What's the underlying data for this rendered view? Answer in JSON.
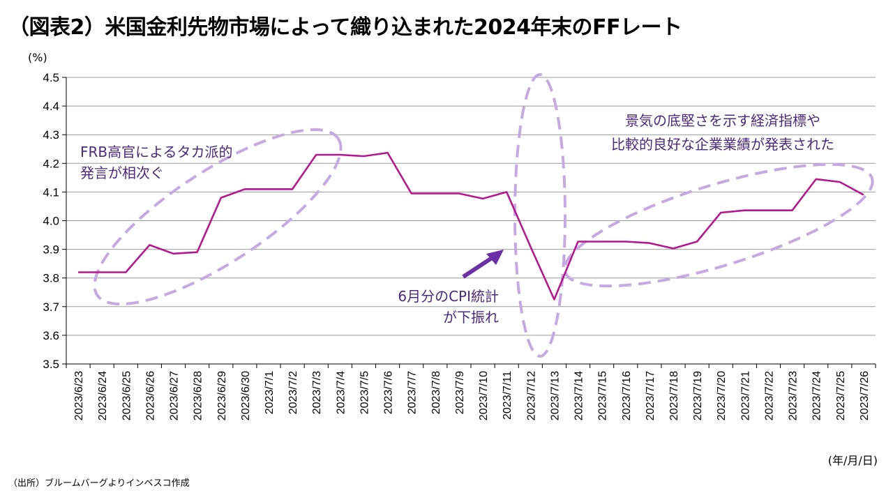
{
  "title": "（図表2）米国金利先物市場によって織り込まれた2024年末のFFレート",
  "source": "（出所）ブルームバーグよりインベスコ作成",
  "chart_data": {
    "type": "line",
    "y_unit": "(%)",
    "x_unit": "(年/月/日)",
    "ylim": [
      3.5,
      4.5
    ],
    "yticks": [
      "3.5",
      "3.6",
      "3.7",
      "3.8",
      "3.9",
      "4.0",
      "4.1",
      "4.2",
      "4.3",
      "4.4",
      "4.5"
    ],
    "grid": true,
    "line_color": "#b5178f",
    "annotation_color": "#c6a9e2",
    "categories": [
      "2023/6/23",
      "2023/6/24",
      "2023/6/25",
      "2023/6/26",
      "2023/6/27",
      "2023/6/28",
      "2023/6/29",
      "2023/6/30",
      "2023/7/1",
      "2023/7/2",
      "2023/7/3",
      "2023/7/4",
      "2023/7/5",
      "2023/7/6",
      "2023/7/7",
      "2023/7/8",
      "2023/7/9",
      "2023/7/10",
      "2023/7/11",
      "2023/7/12",
      "2023/7/13",
      "2023/7/14",
      "2023/7/15",
      "2023/7/16",
      "2023/7/17",
      "2023/7/18",
      "2023/7/19",
      "2023/7/20",
      "2023/7/21",
      "2023/7/22",
      "2023/7/23",
      "2023/7/24",
      "2023/7/25",
      "2023/7/26"
    ],
    "series": [
      {
        "values": [
          3.82,
          3.82,
          3.82,
          3.915,
          3.885,
          3.89,
          4.08,
          4.11,
          4.11,
          4.11,
          4.23,
          4.23,
          4.225,
          4.237,
          4.095,
          4.095,
          4.095,
          4.077,
          4.1,
          3.91,
          3.725,
          3.927,
          3.927,
          3.927,
          3.922,
          3.903,
          3.927,
          4.028,
          4.036,
          4.036,
          4.036,
          4.145,
          4.135,
          4.09
        ]
      }
    ],
    "annotations": [
      {
        "lines": [
          "FRB高官によるタカ派的",
          "発言が相次ぐ"
        ]
      },
      {
        "lines": [
          "6月分のCPI統計",
          "が下振れ"
        ]
      },
      {
        "lines": [
          "景気の底堅さを示す経済指標や",
          "比較的良好な企業業績が発表された"
        ]
      }
    ]
  }
}
